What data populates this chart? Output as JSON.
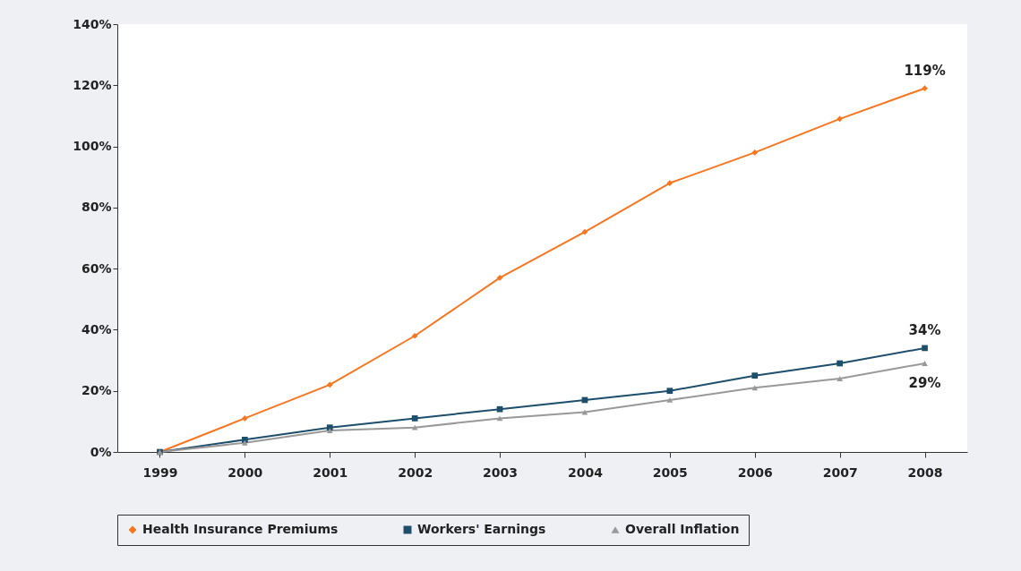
{
  "chart_data": {
    "type": "line",
    "categories": [
      "1999",
      "2000",
      "2001",
      "2002",
      "2003",
      "2004",
      "2005",
      "2006",
      "2007",
      "2008"
    ],
    "ylim": [
      0,
      140
    ],
    "yticks": [
      {
        "value": 0,
        "label": "0%"
      },
      {
        "value": 20,
        "label": "20%"
      },
      {
        "value": 40,
        "label": "40%"
      },
      {
        "value": 60,
        "label": "60%"
      },
      {
        "value": 80,
        "label": "80%"
      },
      {
        "value": 100,
        "label": "100%"
      },
      {
        "value": 120,
        "label": "120%"
      },
      {
        "value": 140,
        "label": "140%"
      }
    ],
    "grid": false,
    "legend": "bottom",
    "line_style": "solid",
    "series": [
      {
        "name": "Health Insurance Premiums",
        "color": "#f7761f",
        "marker": "diamond",
        "values": [
          0,
          11,
          22,
          38,
          57,
          72,
          88,
          98,
          109,
          119
        ],
        "value_labels": [
          null,
          null,
          null,
          null,
          null,
          null,
          null,
          null,
          null,
          "119%"
        ]
      },
      {
        "name": "Workers' Earnings",
        "color": "#1d4e6b",
        "marker": "square",
        "values": [
          0,
          4,
          8,
          11,
          14,
          17,
          20,
          25,
          29,
          34
        ],
        "value_labels": [
          null,
          null,
          null,
          null,
          null,
          null,
          null,
          null,
          null,
          "34%"
        ]
      },
      {
        "name": "Overall Inflation",
        "color": "#999999",
        "marker": "triangle",
        "values": [
          0,
          3,
          7,
          8,
          11,
          13,
          17,
          21,
          24,
          29
        ],
        "value_labels": [
          null,
          null,
          null,
          null,
          null,
          null,
          null,
          null,
          null,
          "29%"
        ]
      }
    ]
  }
}
